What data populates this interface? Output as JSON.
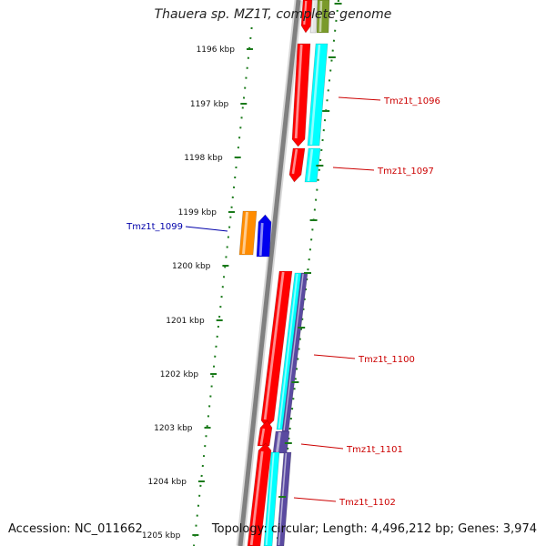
{
  "title": "Thauera sp. MZ1T, complete genome",
  "accession": "Accession: NC_011662",
  "topology": "Topology: circular; Length: 4,496,212 bp; Genes: 3,974",
  "colors": {
    "backbone": "#808080",
    "gene_red": "#ff0000",
    "gene_cyan": "#00ffff",
    "gene_purple": "#5a4aa0",
    "gene_orange": "#ff8c00",
    "gene_blue": "#0000ee",
    "gene_olive": "#7a9a2a",
    "tick_green": "#1a7a1a",
    "label_red": "#cc0000",
    "label_blue": "#0000aa"
  },
  "scale_ticks": [
    "1196 kbp",
    "1197 kbp",
    "1198 kbp",
    "1199 kbp",
    "1200 kbp",
    "1201 kbp",
    "1202 kbp",
    "1203 kbp",
    "1204 kbp",
    "1205 kbp"
  ],
  "gene_labels": [
    "Tmz1t_1096",
    "Tmz1t_1097",
    "Tmz1t_1099",
    "Tmz1t_1100",
    "Tmz1t_1101",
    "Tmz1t_1102"
  ]
}
